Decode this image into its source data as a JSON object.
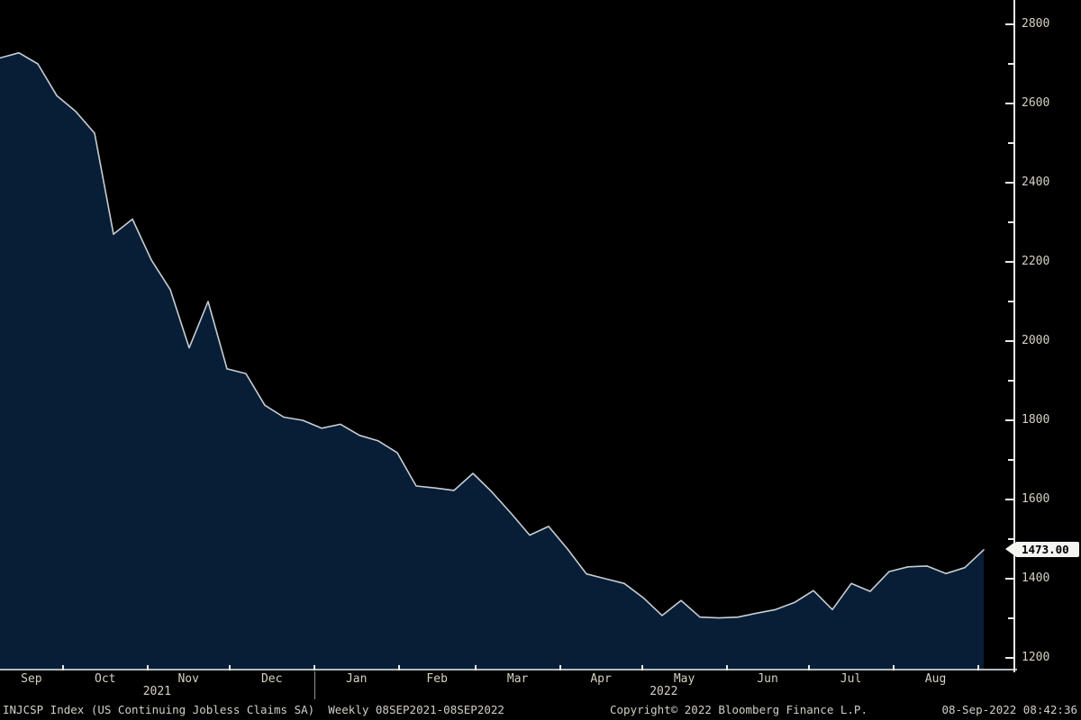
{
  "footer": {
    "left": "INJCSP Index (US Continuing Jobless Claims SA)  Weekly 08SEP2021-08SEP2022",
    "copyright": "Copyright© 2022 Bloomberg Finance L.P.",
    "timestamp": "08-Sep-2022 08:42:36"
  },
  "colors": {
    "background": "#000000",
    "area_fill": "#081e37",
    "line": "#c9ced3",
    "axis_bar": "#efefec",
    "x_axis_line": "#b4bac0",
    "tick": "#e9e9e6",
    "axis_label_text": "#d6d0c2",
    "price_flag_bg": "#f4f4f1",
    "price_flag_text": "#000000"
  },
  "chart_data": {
    "type": "area",
    "title": "INJCSP Index (US Continuing Jobless Claims SA)",
    "frequency": "Weekly",
    "date_range": "08SEP2021-08SEP2022",
    "xlabel": "",
    "ylabel": "",
    "x_unit": "week_index_from_08SEP2021",
    "x": [
      0,
      1,
      2,
      3,
      4,
      5,
      6,
      7,
      8,
      9,
      10,
      11,
      12,
      13,
      14,
      15,
      16,
      17,
      18,
      19,
      20,
      21,
      22,
      23,
      24,
      25,
      26,
      27,
      28,
      29,
      30,
      31,
      32,
      33,
      34,
      35,
      36,
      37,
      38,
      39,
      40,
      41,
      42,
      43,
      44,
      45,
      46,
      47,
      48,
      49,
      50,
      51,
      52
    ],
    "values": [
      2715,
      2728,
      2700,
      2620,
      2580,
      2525,
      2270,
      2308,
      2205,
      2130,
      1983,
      2100,
      1930,
      1918,
      1838,
      1808,
      1800,
      1780,
      1790,
      1762,
      1748,
      1718,
      1634,
      1629,
      1623,
      1666,
      1619,
      1566,
      1510,
      1532,
      1475,
      1412,
      1400,
      1388,
      1352,
      1307,
      1345,
      1303,
      1301,
      1303,
      1313,
      1322,
      1340,
      1370,
      1322,
      1388,
      1368,
      1418,
      1430,
      1432,
      1413,
      1428,
      1473
    ],
    "values_unit": "thousands",
    "last_price": "1473.00",
    "ylim": [
      1200,
      2800
    ],
    "y_ticks_major": [
      2800,
      2600,
      2400,
      2200,
      2000,
      1800,
      1600,
      1400,
      1200
    ],
    "y_minor_step": 100,
    "month_labels": [
      "Sep",
      "Oct",
      "Nov",
      "Dec",
      "Jan",
      "Feb",
      "Mar",
      "Apr",
      "May",
      "Jun",
      "Jul",
      "Aug"
    ],
    "month_boundaries_weeks": [
      3.286,
      7.714,
      12.0,
      16.429,
      20.857,
      24.857,
      29.286,
      33.571,
      38.0,
      42.286,
      46.714,
      51.143
    ],
    "year_labels": [
      "2021",
      "2022"
    ],
    "year_divider_week": 16.429,
    "grid": false,
    "legend_position": "none"
  }
}
